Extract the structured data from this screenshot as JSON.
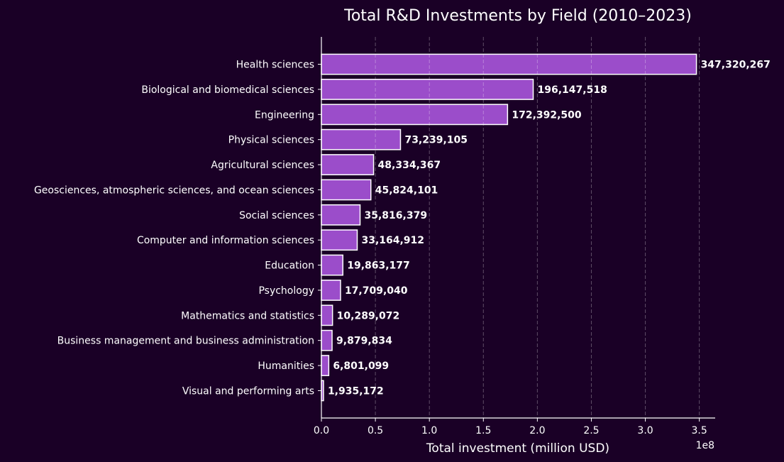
{
  "chart_data": {
    "type": "bar",
    "orientation": "horizontal",
    "title": "Total R&D Investments by Field (2010–2023)",
    "xlabel": "Total investment (million USD)",
    "ylabel": "",
    "x_offset_label": "1e8",
    "xlim": [
      0,
      364686280
    ],
    "xticks": [
      0,
      50000000,
      100000000,
      150000000,
      200000000,
      250000000,
      300000000,
      350000000
    ],
    "xtick_labels": [
      "0.0",
      "0.5",
      "1.0",
      "1.5",
      "2.0",
      "2.5",
      "3.0",
      "3.5"
    ],
    "grid": {
      "x": true,
      "y": false,
      "style": "dashed"
    },
    "categories": [
      "Health sciences",
      "Biological and biomedical sciences",
      "Engineering",
      "Physical sciences",
      "Agricultural sciences",
      "Geosciences, atmospheric sciences, and ocean sciences",
      "Social sciences",
      "Computer and information sciences",
      "Education",
      "Psychology",
      "Mathematics and statistics",
      "Business management and business administration",
      "Humanities",
      "Visual and performing arts"
    ],
    "values": [
      347320267,
      196147518,
      172392500,
      73239105,
      48334367,
      45824101,
      35816379,
      33164912,
      19863177,
      17709040,
      10289072,
      9879834,
      6801099,
      1935172
    ],
    "data_labels": [
      "347,320,267",
      "196,147,518",
      "172,392,500",
      "73,239,105",
      "48,334,367",
      "45,824,101",
      "35,816,379",
      "33,164,912",
      "19,863,177",
      "17,709,040",
      "10,289,072",
      "9,879,834",
      "6,801,099",
      "1,935,172"
    ],
    "colors": {
      "background": "#1a0026",
      "bar": "#9b4dca",
      "bar_edge": "#ffffff",
      "text": "#ffffff"
    }
  }
}
